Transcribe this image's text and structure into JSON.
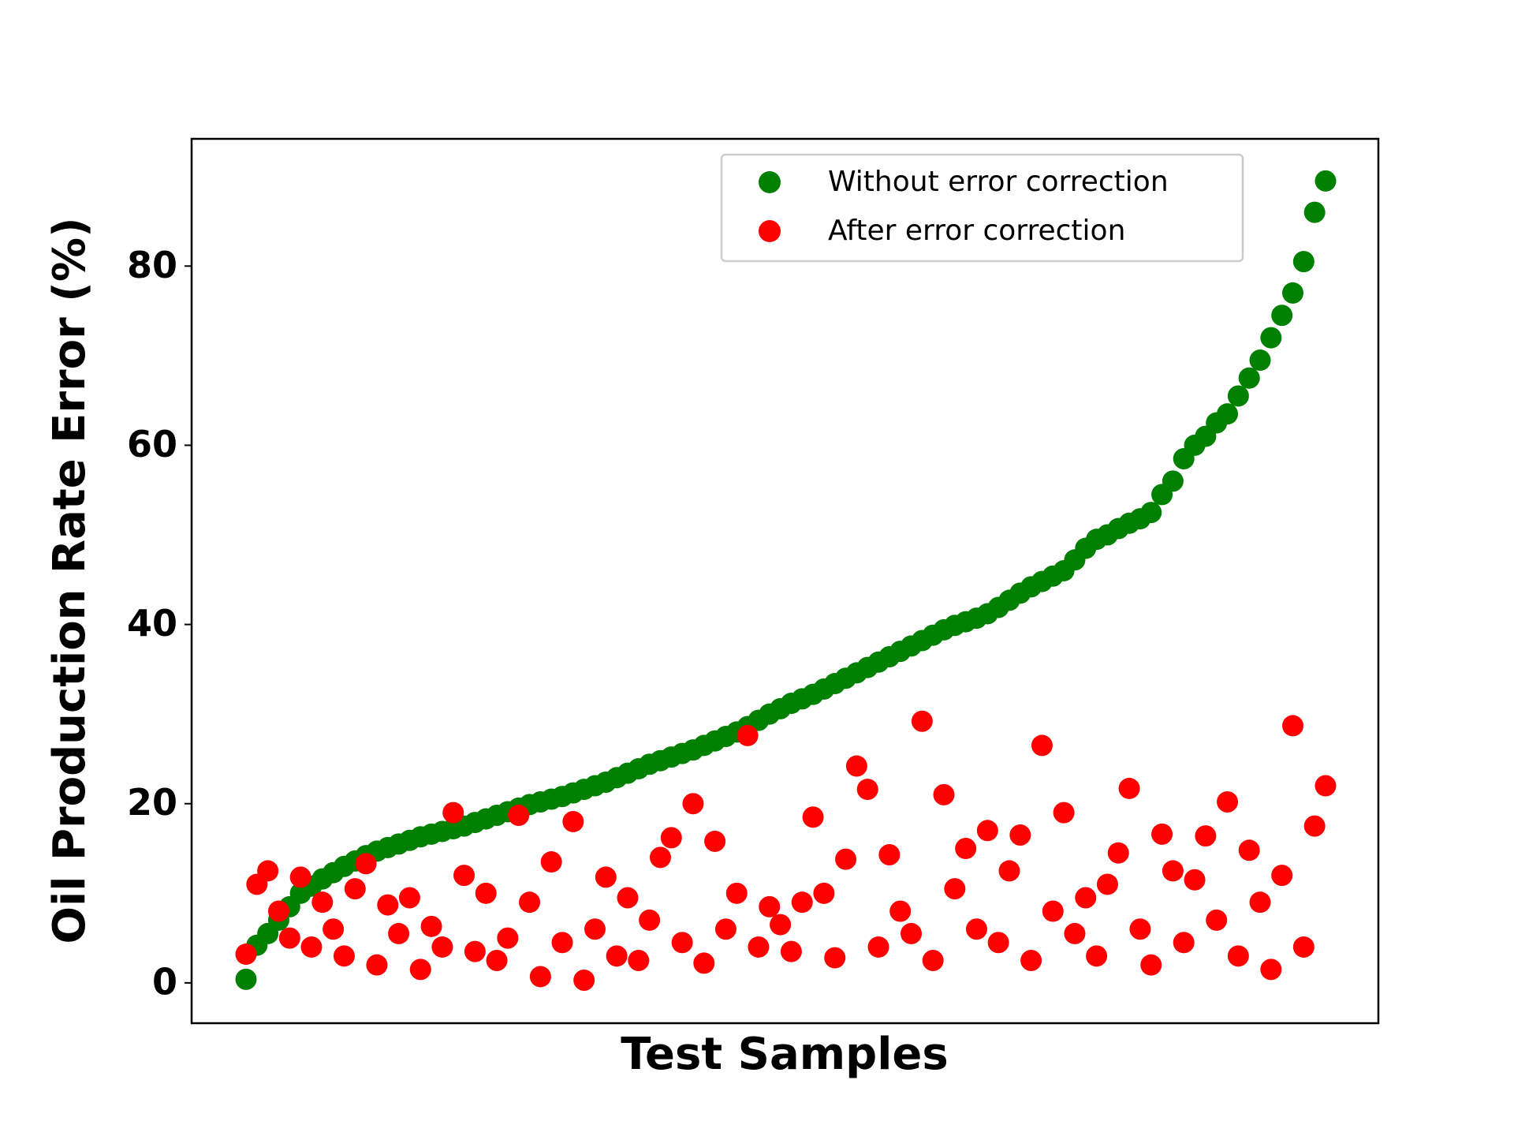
{
  "chart_data": {
    "type": "scatter",
    "xlabel": "Test Samples",
    "ylabel": "Oil Production Rate Error (%)",
    "ylim": [
      -4.5,
      94.2
    ],
    "yticks": [
      0,
      20,
      40,
      60,
      80
    ],
    "legend": "upper right",
    "series": [
      {
        "name": "Without error correction",
        "color": "#008000",
        "values": [
          0.4,
          4.2,
          5.5,
          7.0,
          8.5,
          10.0,
          10.8,
          11.6,
          12.3,
          13.0,
          13.6,
          14.2,
          14.7,
          15.1,
          15.5,
          15.9,
          16.3,
          16.6,
          16.9,
          17.2,
          17.5,
          17.9,
          18.3,
          18.7,
          19.1,
          19.5,
          19.9,
          20.2,
          20.5,
          20.8,
          21.2,
          21.6,
          22.0,
          22.4,
          22.9,
          23.4,
          23.9,
          24.4,
          24.8,
          25.2,
          25.6,
          26.0,
          26.5,
          27.0,
          27.5,
          28.0,
          28.6,
          29.3,
          30.0,
          30.6,
          31.2,
          31.7,
          32.2,
          32.8,
          33.4,
          34.0,
          34.6,
          35.2,
          35.8,
          36.4,
          37.0,
          37.6,
          38.2,
          38.8,
          39.4,
          39.9,
          40.3,
          40.7,
          41.2,
          41.9,
          42.7,
          43.5,
          44.2,
          44.8,
          45.4,
          46.0,
          47.2,
          48.5,
          49.5,
          50.0,
          50.7,
          51.3,
          51.8,
          52.5,
          54.5,
          56.0,
          58.5,
          60.0,
          61.0,
          62.5,
          63.5,
          65.5,
          67.5,
          69.5,
          72.0,
          74.5,
          77.0,
          80.5,
          86.0,
          89.5
        ]
      },
      {
        "name": "After error correction",
        "color": "#ff0000",
        "values": [
          3.2,
          11.0,
          12.5,
          8.0,
          5.0,
          11.8,
          4.0,
          9.0,
          6.0,
          3.0,
          10.5,
          13.3,
          2.0,
          8.7,
          5.5,
          9.5,
          1.5,
          6.3,
          4.0,
          19.0,
          12.0,
          3.5,
          10.0,
          2.5,
          5.0,
          18.7,
          9.0,
          0.7,
          13.5,
          4.5,
          18.0,
          0.3,
          6.0,
          11.8,
          3.0,
          9.5,
          2.5,
          7.0,
          14.0,
          16.2,
          4.5,
          20.0,
          2.2,
          15.8,
          6.0,
          10.0,
          27.6,
          4.0,
          8.5,
          6.5,
          3.5,
          9.0,
          18.5,
          10.0,
          2.8,
          13.8,
          24.2,
          21.6,
          4.0,
          14.3,
          8.0,
          5.5,
          29.2,
          2.5,
          21.0,
          10.5,
          15.0,
          6.0,
          17.0,
          4.5,
          12.5,
          16.5,
          2.5,
          26.5,
          8.0,
          19.0,
          5.5,
          9.5,
          3.0,
          11.0,
          14.5,
          21.7,
          6.0,
          2.0,
          16.6,
          12.5,
          4.5,
          11.5,
          16.4,
          7.0,
          20.2,
          3.0,
          14.8,
          9.0,
          1.5,
          12.0,
          28.7,
          4.0,
          17.5,
          22.0
        ]
      }
    ]
  }
}
